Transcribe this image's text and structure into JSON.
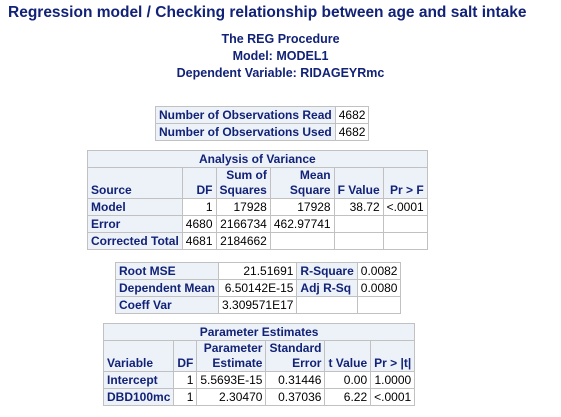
{
  "title": "Regression model / Checking relationship between age and salt intake",
  "procedure": {
    "line1": "The REG Procedure",
    "line2": "Model: MODEL1",
    "line3": "Dependent Variable: RIDAGEYRmc"
  },
  "observations": {
    "rows": [
      {
        "label": "Number of Observations Read",
        "value": "4682"
      },
      {
        "label": "Number of Observations Used",
        "value": "4682"
      }
    ]
  },
  "anova": {
    "caption": "Analysis of Variance",
    "headers": {
      "source": "Source",
      "df": "DF",
      "ss_top": "Sum of",
      "ss_bottom": "Squares",
      "ms_top": "Mean",
      "ms_bottom": "Square",
      "f": "F Value",
      "p": "Pr > F"
    },
    "rows": [
      {
        "source": "Model",
        "df": "1",
        "ss": "17928",
        "ms": "17928",
        "f": "38.72",
        "p": "<.0001"
      },
      {
        "source": "Error",
        "df": "4680",
        "ss": "2166734",
        "ms": "462.97741",
        "f": "",
        "p": ""
      },
      {
        "source": "Corrected Total",
        "df": "4681",
        "ss": "2184662",
        "ms": "",
        "f": "",
        "p": ""
      }
    ]
  },
  "fit": {
    "rows": [
      {
        "label1": "Root MSE",
        "value1": "21.51691",
        "label2": "R-Square",
        "value2": "0.0082"
      },
      {
        "label1": "Dependent Mean",
        "value1": "6.50142E-15",
        "label2": "Adj R-Sq",
        "value2": "0.0080"
      },
      {
        "label1": "Coeff Var",
        "value1": "3.309571E17",
        "label2": "",
        "value2": ""
      }
    ]
  },
  "params": {
    "caption": "Parameter Estimates",
    "headers": {
      "variable": "Variable",
      "df": "DF",
      "est_top": "Parameter",
      "est_bottom": "Estimate",
      "se_top": "Standard",
      "se_bottom": "Error",
      "t": "t Value",
      "p": "Pr > |t|"
    },
    "rows": [
      {
        "variable": "Intercept",
        "df": "1",
        "estimate": "5.5693E-15",
        "se": "0.31446",
        "t": "0.00",
        "p": "1.0000"
      },
      {
        "variable": "DBD100mc",
        "df": "1",
        "estimate": "2.30470",
        "se": "0.37036",
        "t": "6.22",
        "p": "<.0001"
      }
    ]
  },
  "colors": {
    "header_text": "#112277",
    "header_bg": "#edf2f9",
    "border": "#c1c1c1"
  }
}
